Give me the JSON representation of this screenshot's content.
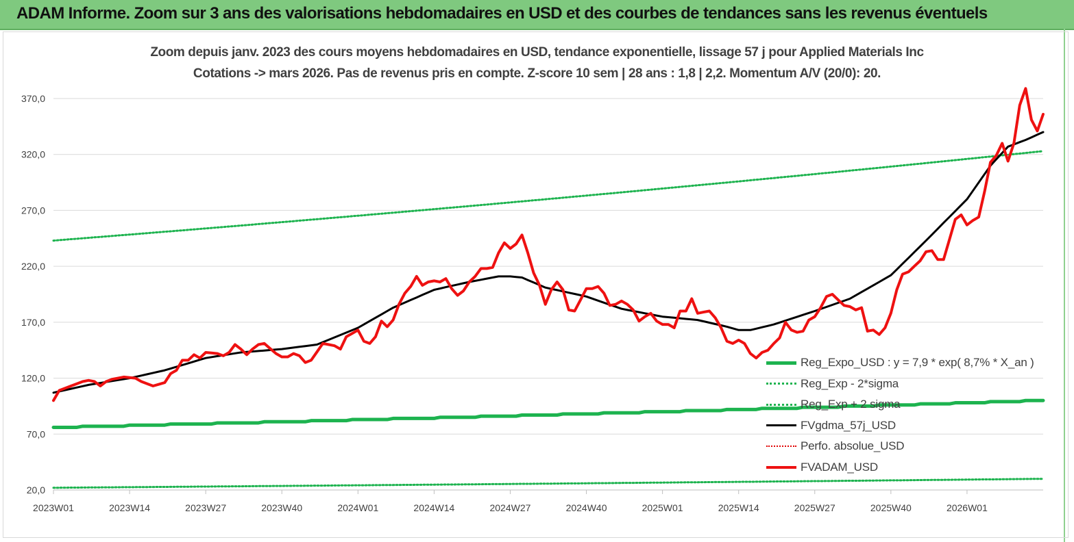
{
  "header": {
    "banner_title": "ADAM Informe. Zoom sur 3 ans des valorisations hebdomadaires en USD et des courbes de tendances sans les revenus éventuels"
  },
  "colors": {
    "banner_bg": "#7fc97f",
    "reg_expo": "#1db34f",
    "sigma_lines": "#1db34f",
    "fvgdma": "#000000",
    "perfo": "#e00000",
    "fvadam": "#ee1111",
    "grid": "#d9d9d9"
  },
  "chart_data": {
    "type": "line",
    "title": "Zoom depuis janv. 2023 des cours moyens hebdomadaires en USD, tendance exponentielle, lissage 57 j pour Applied Materials Inc",
    "subtitle": "Cotations -> mars 2026. Pas de revenus pris en compte. Z-score 10 sem | 28 ans : 1,8 | 2,2. Momentum A/V (20/0): 20.",
    "xlabel": "",
    "ylabel": "",
    "ylim": [
      20,
      370
    ],
    "y_ticks": [
      "20,0",
      "70,0",
      "120,0",
      "170,0",
      "220,0",
      "270,0",
      "320,0",
      "370,0"
    ],
    "x_ticks": [
      "2023W01",
      "2023W14",
      "2023W27",
      "2023W40",
      "2024W01",
      "2024W14",
      "2024W27",
      "2024W40",
      "2025W01",
      "2025W14",
      "2025W27",
      "2025W40",
      "2026W01"
    ],
    "x_tick_index": [
      0,
      13,
      26,
      39,
      52,
      65,
      78,
      91,
      104,
      117,
      130,
      143,
      156
    ],
    "n_points": 170,
    "grid": "horizontal",
    "legend_position": "bottom-right",
    "series": [
      {
        "name": "Reg_Expo_USD : y = 7,9 * exp( 8,7% * X_an )",
        "style": "solid-thick",
        "x": [
          0,
          169
        ],
        "values": [
          76,
          100
        ]
      },
      {
        "name": "Reg_Exp - 2*sigma",
        "style": "dotted",
        "x": [
          0,
          169
        ],
        "values": [
          22,
          30
        ]
      },
      {
        "name": "Reg_Exp + 2 sigma",
        "style": "dotted",
        "x": [
          0,
          169
        ],
        "values": [
          243,
          323
        ]
      },
      {
        "name": "FVgdma_57j_USD",
        "style": "solid",
        "x": [
          0,
          6,
          13,
          19,
          26,
          32,
          39,
          45,
          52,
          58,
          65,
          71,
          76,
          78,
          80,
          84,
          91,
          97,
          104,
          110,
          115,
          117,
          119,
          123,
          130,
          136,
          143,
          149,
          156,
          160,
          163,
          166,
          169
        ],
        "values": [
          107,
          114,
          120,
          127,
          138,
          143,
          146,
          150,
          165,
          183,
          199,
          206,
          211,
          211,
          210,
          201,
          193,
          182,
          175,
          172,
          166,
          163,
          163,
          168,
          180,
          191,
          212,
          243,
          280,
          310,
          327,
          333,
          340
        ]
      },
      {
        "name": "Perfo. absolue_USD",
        "style": "dotted-red",
        "x": [],
        "values": []
      },
      {
        "name": "FVADAM_USD",
        "style": "solid-thick",
        "x": [
          0,
          1,
          3,
          5,
          6,
          7,
          8,
          9,
          10,
          12,
          14,
          15,
          17,
          19,
          20,
          21,
          22,
          23,
          24,
          25,
          26,
          28,
          29,
          30,
          31,
          32,
          33,
          34,
          35,
          36,
          38,
          39,
          40,
          41,
          42,
          43,
          44,
          46,
          48,
          49,
          50,
          51,
          52,
          53,
          54,
          55,
          56,
          57,
          58,
          59,
          60,
          61,
          62,
          63,
          64,
          65,
          66,
          67,
          68,
          69,
          70,
          71,
          72,
          73,
          74,
          75,
          76,
          77,
          78,
          79,
          80,
          81,
          82,
          83,
          84,
          85,
          86,
          87,
          88,
          89,
          90,
          91,
          92,
          93,
          94,
          95,
          96,
          97,
          98,
          99,
          100,
          101,
          102,
          103,
          104,
          105,
          106,
          107,
          108,
          109,
          110,
          111,
          112,
          113,
          114,
          115,
          116,
          117,
          118,
          119,
          120,
          121,
          122,
          123,
          124,
          125,
          126,
          127,
          128,
          129,
          130,
          131,
          132,
          133,
          134,
          135,
          136,
          137,
          138,
          139,
          140,
          141,
          142,
          143,
          144,
          145,
          146,
          147,
          148,
          149,
          150,
          151,
          152,
          153,
          154,
          155,
          156,
          157,
          158,
          159,
          160,
          161,
          162,
          163,
          164,
          165,
          166,
          167,
          168,
          169
        ],
        "values": [
          100,
          109,
          113,
          117,
          118,
          117,
          113,
          117,
          119,
          121,
          120,
          117,
          113,
          116,
          124,
          127,
          136,
          136,
          141,
          138,
          143,
          142,
          140,
          143,
          150,
          146,
          141,
          146,
          150,
          151,
          142,
          139,
          139,
          142,
          140,
          134,
          136,
          151,
          149,
          146,
          157,
          160,
          163,
          153,
          151,
          157,
          171,
          166,
          172,
          186,
          196,
          202,
          211,
          203,
          206,
          207,
          206,
          209,
          200,
          194,
          198,
          206,
          211,
          218,
          218,
          219,
          232,
          241,
          236,
          240,
          248,
          232,
          214,
          203,
          186,
          199,
          206,
          199,
          181,
          180,
          190,
          200,
          200,
          202,
          196,
          185,
          186,
          189,
          186,
          181,
          171,
          175,
          178,
          171,
          168,
          168,
          165,
          180,
          180,
          191,
          178,
          179,
          180,
          174,
          165,
          153,
          151,
          154,
          151,
          142,
          138,
          143,
          145,
          151,
          156,
          170,
          163,
          161,
          162,
          172,
          175,
          183,
          193,
          195,
          190,
          185,
          184,
          181,
          183,
          162,
          163,
          159,
          165,
          178,
          199,
          213,
          215,
          220,
          225,
          233,
          234,
          226,
          226,
          244,
          262,
          266,
          257,
          261,
          264,
          287,
          313,
          319,
          330,
          314,
          330,
          364,
          379,
          351,
          341,
          356
        ]
      }
    ]
  }
}
